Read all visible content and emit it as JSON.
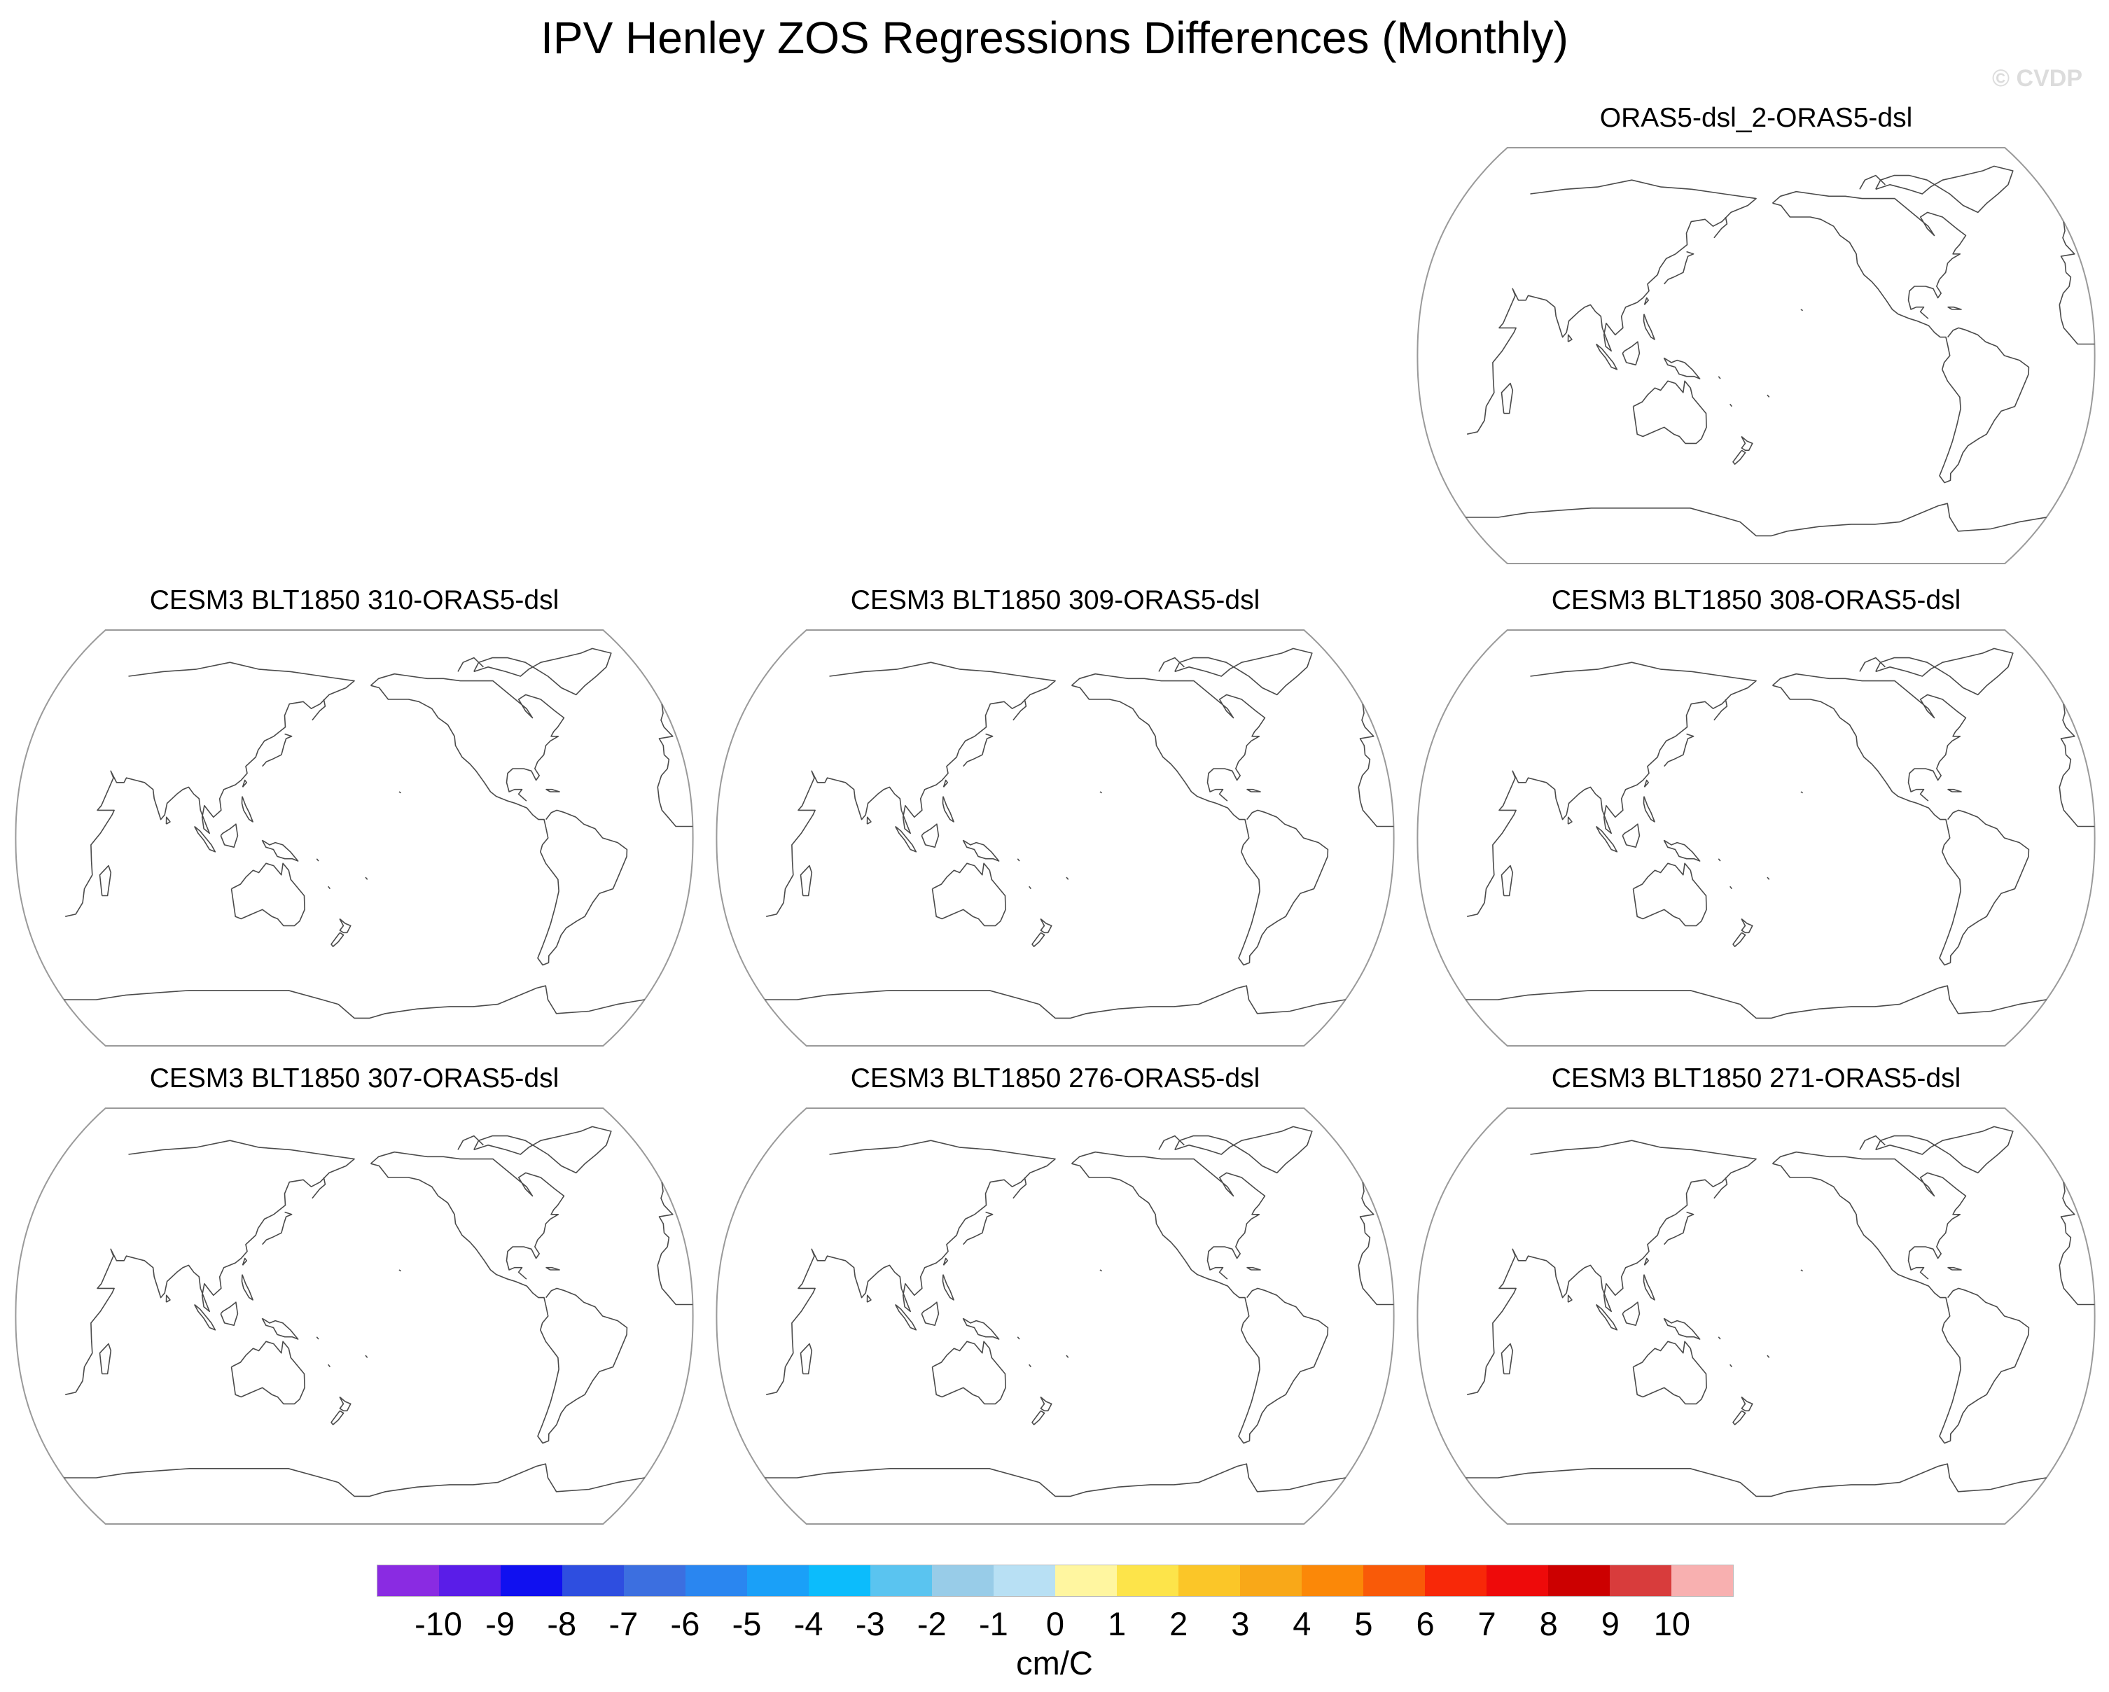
{
  "title": "IPV Henley ZOS Regressions Differences (Monthly)",
  "watermark": "© CVDP",
  "panels": [
    {
      "title": "ORAS5-dsl_2-ORAS5-dsl"
    },
    {
      "title": "CESM3 BLT1850 310-ORAS5-dsl"
    },
    {
      "title": "CESM3 BLT1850 309-ORAS5-dsl"
    },
    {
      "title": "CESM3 BLT1850 308-ORAS5-dsl"
    },
    {
      "title": "CESM3 BLT1850 307-ORAS5-dsl"
    },
    {
      "title": "CESM3 BLT1850 276-ORAS5-dsl"
    },
    {
      "title": "CESM3 BLT1850 271-ORAS5-dsl"
    }
  ],
  "colorbar": {
    "units": "cm/C",
    "labels": [
      "-10",
      "-9",
      "-8",
      "-7",
      "-6",
      "-5",
      "-4",
      "-3",
      "-2",
      "-1",
      "0",
      "1",
      "2",
      "3",
      "4",
      "5",
      "6",
      "7",
      "8",
      "9",
      "10"
    ],
    "colors": [
      "#8a2be2",
      "#5a1de8",
      "#1010f0",
      "#2e4ee0",
      "#3c6fe0",
      "#2a86f0",
      "#1aa0f8",
      "#0cbcfc",
      "#5ac4f0",
      "#98cce8",
      "#b8e0f4",
      "#fff6a0",
      "#fde44a",
      "#fbc628",
      "#f9a818",
      "#fb8808",
      "#f95a08",
      "#f82808",
      "#ee0a0a",
      "#cc0000",
      "#d83c3c",
      "#f8b0b0"
    ]
  }
}
